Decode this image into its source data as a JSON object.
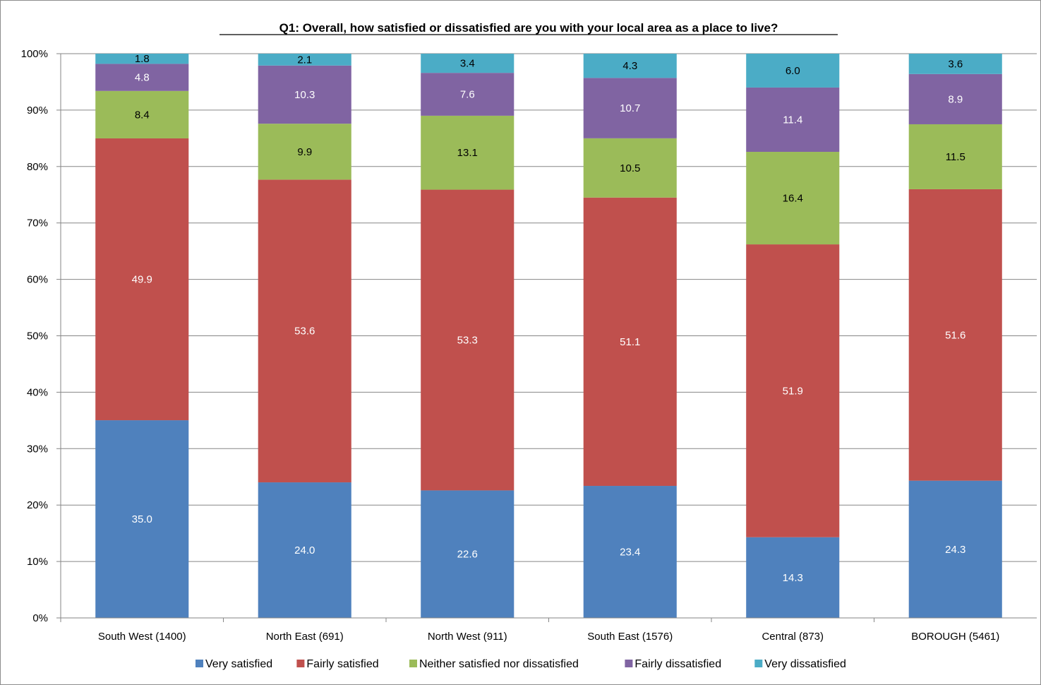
{
  "chart_data": {
    "type": "bar",
    "stacked": true,
    "percent_stacked": true,
    "title": "Q1: Overall, how satisfied or dissatisfied are you with your local area as a place to live?",
    "categories": [
      "South West (1400)",
      "North East (691)",
      "North West (911)",
      "South East (1576)",
      "Central (873)",
      "BOROUGH (5461)"
    ],
    "y_ticks": [
      "0%",
      "10%",
      "20%",
      "30%",
      "40%",
      "50%",
      "60%",
      "70%",
      "80%",
      "90%",
      "100%"
    ],
    "ylim": [
      0,
      100
    ],
    "grid": true,
    "legend_position": "bottom",
    "series": [
      {
        "name": "Very satisfied",
        "color": "#4F81BD",
        "label_color": "#ffffff",
        "values": [
          35.0,
          24.0,
          22.6,
          23.4,
          14.3,
          24.3
        ],
        "labels": [
          "35.0",
          "24.0",
          "22.6",
          "23.4",
          "14.3",
          "24.3"
        ]
      },
      {
        "name": "Fairly satisfied",
        "color": "#C0504D",
        "label_color": "#ffffff",
        "values": [
          49.9,
          53.6,
          53.3,
          51.1,
          51.9,
          51.6
        ],
        "labels": [
          "49.9",
          "53.6",
          "53.3",
          "51.1",
          "51.9",
          "51.6"
        ]
      },
      {
        "name": "Neither satisfied nor dissatisfied",
        "color": "#9BBB59",
        "label_color": "#000000",
        "values": [
          8.4,
          9.9,
          13.1,
          10.5,
          16.4,
          11.5
        ],
        "labels": [
          "8.4",
          "9.9",
          "13.1",
          "10.5",
          "16.4",
          "11.5"
        ]
      },
      {
        "name": "Fairly dissatisfied",
        "color": "#8064A2",
        "label_color": "#ffffff",
        "values": [
          4.8,
          10.3,
          7.6,
          10.7,
          11.4,
          8.9
        ],
        "labels": [
          "4.8",
          "10.3",
          "7.6",
          "10.7",
          "11.4",
          "8.9"
        ]
      },
      {
        "name": "Very dissatisfied",
        "color": "#4BACC6",
        "label_color": "#000000",
        "values": [
          1.8,
          2.1,
          3.4,
          4.3,
          6.0,
          3.6
        ],
        "labels": [
          "1.8",
          "2.1",
          "3.4",
          "4.3",
          "6.0",
          "3.6"
        ]
      }
    ]
  }
}
